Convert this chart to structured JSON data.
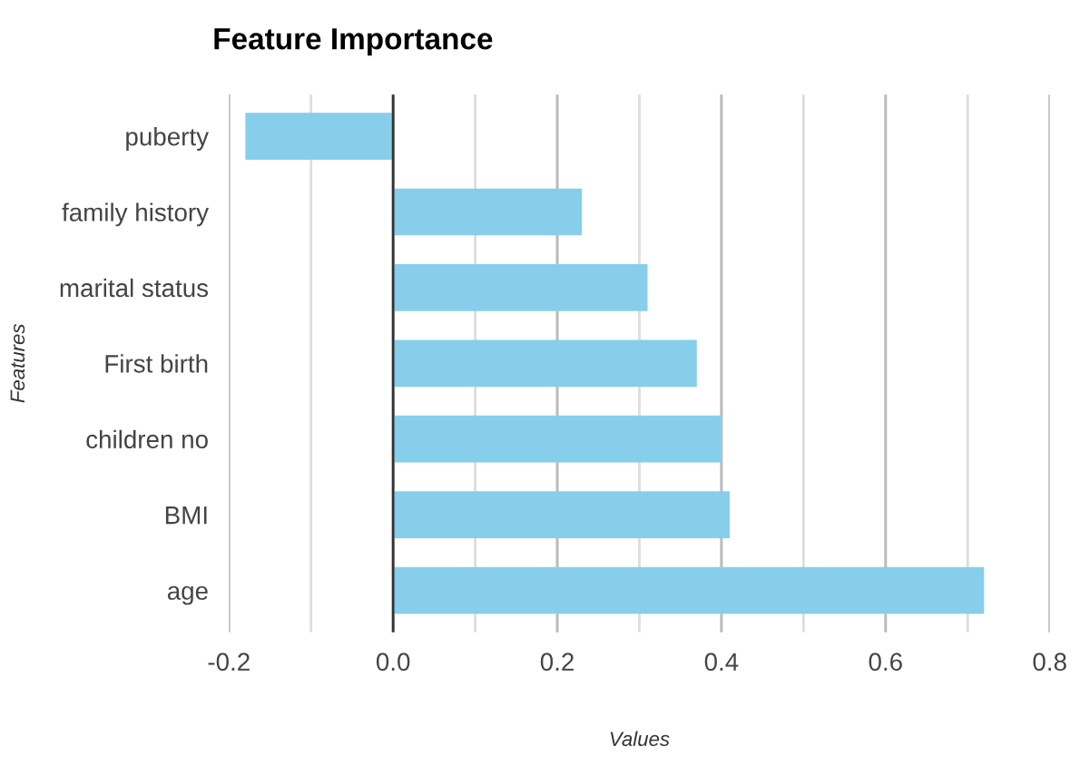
{
  "chart_data": {
    "type": "bar",
    "orientation": "horizontal",
    "title": "Feature Importance",
    "xlabel": "Values",
    "ylabel": "Features",
    "categories": [
      "puberty",
      "family history",
      "marital status",
      "First birth",
      "children no",
      "BMI",
      "age"
    ],
    "values": [
      -0.18,
      0.23,
      0.31,
      0.37,
      0.4,
      0.41,
      0.72
    ],
    "color": "#87ceeb",
    "xlim": [
      -0.2,
      0.8
    ],
    "xticks": [
      {
        "value": -0.2,
        "label": "-0.2"
      },
      {
        "value": -0.1,
        "label": null
      },
      {
        "value": 0,
        "label": "0.0"
      },
      {
        "value": 0.1,
        "label": null
      },
      {
        "value": 0.2,
        "label": "0.2"
      },
      {
        "value": 0.3,
        "label": null
      },
      {
        "value": 0.4,
        "label": "0.4"
      },
      {
        "value": 0.5,
        "label": null
      },
      {
        "value": 0.6,
        "label": "0.6"
      },
      {
        "value": 0.7,
        "label": null
      },
      {
        "value": 0.8,
        "label": "0.8"
      }
    ],
    "grid": "x",
    "legend": false
  }
}
